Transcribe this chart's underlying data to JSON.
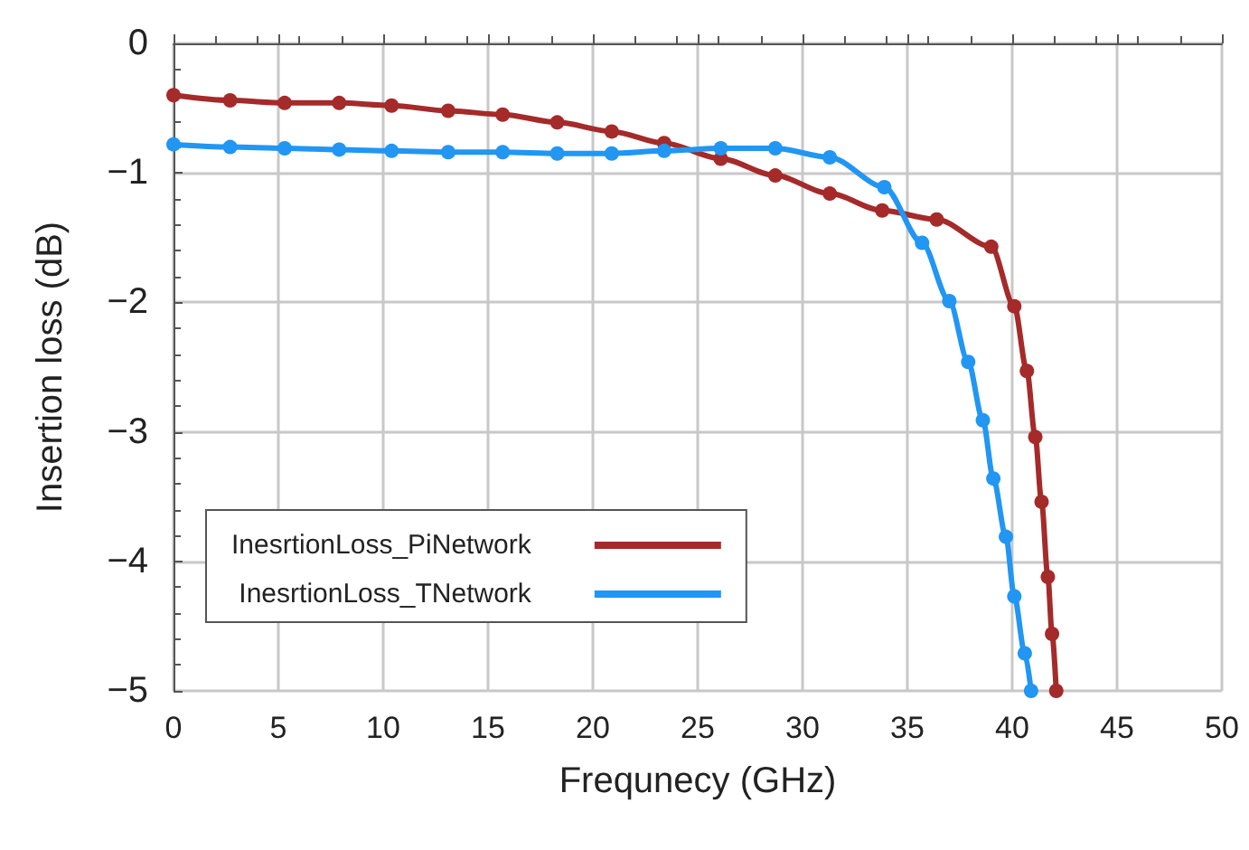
{
  "chart_data": {
    "type": "line",
    "xlabel": "Frequnecy (GHz)",
    "ylabel": "Insertion loss (dB)",
    "xlim": [
      0,
      50
    ],
    "xticks": [
      0,
      5,
      10,
      15,
      20,
      25,
      30,
      35,
      40,
      45,
      50
    ],
    "ylim": [
      -5,
      0
    ],
    "yticks": [
      -5,
      -4,
      -3,
      -2,
      -1,
      0
    ],
    "grid": true,
    "legend": "bottom left",
    "marker": "circle",
    "line_style": "solid",
    "series": [
      {
        "name": "InesrtionLoss_PiNetwork",
        "color": "#a52a2a",
        "x": [
          0,
          2.7,
          5.3,
          7.9,
          10.4,
          13.1,
          15.7,
          18.3,
          20.9,
          23.4,
          26.1,
          28.7,
          31.3,
          33.8,
          36.4,
          39.0,
          40.1,
          40.7,
          41.1,
          41.4,
          41.7,
          41.9,
          42.1
        ],
        "values": [
          -0.4,
          -0.44,
          -0.46,
          -0.46,
          -0.48,
          -0.52,
          -0.55,
          -0.61,
          -0.68,
          -0.77,
          -0.89,
          -1.02,
          -1.16,
          -1.29,
          -1.36,
          -1.57,
          -2.03,
          -2.53,
          -3.04,
          -3.54,
          -4.12,
          -4.56,
          -5.0
        ]
      },
      {
        "name": "InesrtionLoss_TNetwork",
        "color": "#2196f3",
        "x": [
          0,
          2.7,
          5.3,
          7.9,
          10.4,
          13.1,
          15.7,
          18.3,
          20.9,
          23.4,
          26.1,
          28.7,
          31.3,
          33.9,
          35.7,
          37.0,
          37.9,
          38.6,
          39.1,
          39.7,
          40.1,
          40.6,
          40.9
        ],
        "values": [
          -0.78,
          -0.8,
          -0.81,
          -0.82,
          -0.83,
          -0.84,
          -0.84,
          -0.85,
          -0.85,
          -0.83,
          -0.81,
          -0.81,
          -0.88,
          -1.11,
          -1.54,
          -1.99,
          -2.46,
          -2.91,
          -3.36,
          -3.81,
          -4.27,
          -4.71,
          -5.0
        ]
      }
    ]
  }
}
